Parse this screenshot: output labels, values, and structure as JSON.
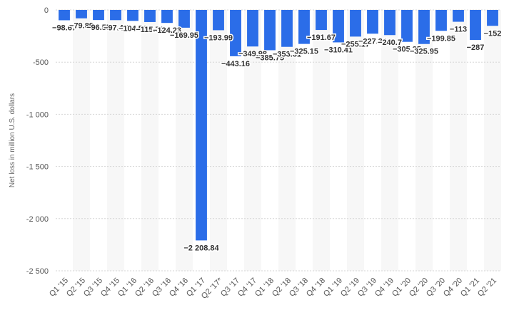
{
  "chart_data": {
    "type": "bar",
    "title": "",
    "xlabel": "",
    "ylabel": "Net loss in million U.S. dollars",
    "ylim": [
      -2500,
      0
    ],
    "yticks": [
      0,
      -500,
      -1000,
      -1500,
      -2000,
      -2500
    ],
    "ytick_labels": [
      "0",
      "-500",
      "-1 000",
      "-1 500",
      "-2 000",
      "-2 500"
    ],
    "grid": true,
    "bar_color": "#2b6de8",
    "band_color": "#f7f7f7",
    "categories": [
      "Q1 '15",
      "Q2 '15",
      "Q3 '15",
      "Q4 '15",
      "Q1 '16",
      "Q2 '16",
      "Q3 '16",
      "Q4 '16",
      "Q1 '17",
      "Q2 '17*",
      "Q3 '17",
      "Q4 '17",
      "Q1 '18",
      "Q2 '18",
      "Q3 '18",
      "Q4 '18",
      "Q1 '19",
      "Q2 '19",
      "Q3 '19",
      "Q4 '19",
      "Q1 '20",
      "Q2 '20",
      "Q3 '20",
      "Q4 '20",
      "Q1 '21",
      "Q2 '21"
    ],
    "values": [
      -98.67,
      -79.89,
      -96.55,
      -97.47,
      -104.56,
      -115.77,
      -124.23,
      -169.95,
      -2208.84,
      -193.99,
      -443.16,
      -349.98,
      -385.75,
      -353.31,
      -325.15,
      -191.67,
      -310.41,
      -255.17,
      -227.34,
      -240.7,
      -305.35,
      -325.95,
      -199.85,
      -113,
      -287,
      -152
    ],
    "value_labels": [
      "−98.67",
      "−79.89",
      "−96.55",
      "−97.47",
      "−104.56",
      "−115.77",
      "−124.23",
      "−169.95",
      "−2 208.84",
      "−193.99",
      "−443.16",
      "−349.98",
      "−385.75",
      "−353.31",
      "−325.15",
      "−191.67",
      "−310.41",
      "−255.17",
      "−227.34",
      "−240.7",
      "−305.35",
      "−325.95",
      "−199.85",
      "−113",
      "−287",
      "−152"
    ]
  }
}
